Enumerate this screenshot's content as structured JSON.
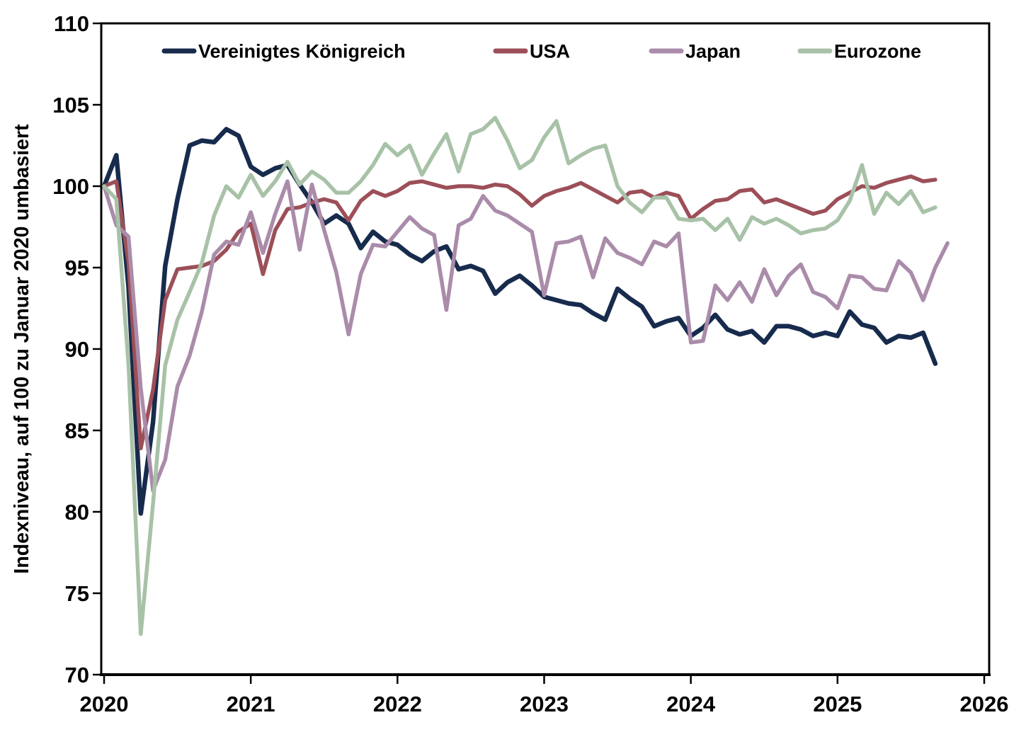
{
  "y_axis": {
    "title": "Indexniveau, auf 100 zu Januar 2020 umbasiert",
    "ticks": [
      110,
      105,
      100,
      95,
      90,
      85,
      80,
      75,
      70
    ]
  },
  "x_axis": {
    "ticks": [
      "2020",
      "2021",
      "2022",
      "2023",
      "2024",
      "2025",
      "2026"
    ]
  },
  "chart_data": {
    "type": "line",
    "title": "",
    "xlabel": "",
    "ylabel": "Indexniveau, auf 100 zu Januar 2020 umbasiert",
    "ylim": [
      70,
      110
    ],
    "xlim": [
      2020,
      2026
    ],
    "x_unit": "month",
    "x_start": "2020-01",
    "grid": false,
    "legend_position": "top-inside",
    "axis_color": "#000000",
    "background_color": "#ffffff",
    "series": [
      {
        "name": "Vereinigtes Königreich",
        "color": "#172b4d",
        "line_width": 6.5,
        "values": [
          100,
          101.9,
          93.8,
          79.9,
          85.5,
          95.1,
          99.2,
          102.5,
          102.8,
          102.7,
          103.5,
          103.1,
          101.2,
          100.7,
          101.1,
          101.3,
          100.1,
          99.0,
          97.7,
          98.2,
          97.7,
          96.2,
          97.2,
          96.6,
          96.4,
          95.8,
          95.4,
          96.0,
          96.3,
          94.9,
          95.1,
          94.8,
          93.4,
          94.1,
          94.5,
          93.9,
          93.2,
          93.0,
          92.8,
          92.7,
          92.2,
          91.8,
          93.7,
          93.1,
          92.6,
          91.4,
          91.7,
          91.9,
          90.8,
          91.3,
          92.1,
          91.2,
          90.9,
          91.1,
          90.4,
          91.4,
          91.4,
          91.2,
          90.8,
          91.0,
          90.8,
          92.3,
          91.5,
          91.3,
          90.4,
          90.8,
          90.7,
          91.0,
          89.1
        ]
      },
      {
        "name": "USA",
        "color": "#9c4f58",
        "line_width": 5.5,
        "values": [
          100,
          100.3,
          95.3,
          83.9,
          87.5,
          93.0,
          94.9,
          95.0,
          95.1,
          95.4,
          96.1,
          97.2,
          97.7,
          94.6,
          97.3,
          98.6,
          98.7,
          99.0,
          99.2,
          99.0,
          97.9,
          99.1,
          99.7,
          99.4,
          99.7,
          100.2,
          100.3,
          100.1,
          99.9,
          100.0,
          100.0,
          99.9,
          100.1,
          100.0,
          99.5,
          98.8,
          99.4,
          99.7,
          99.9,
          100.2,
          99.8,
          99.4,
          99.0,
          99.6,
          99.7,
          99.3,
          99.6,
          99.4,
          98.0,
          98.6,
          99.1,
          99.2,
          99.7,
          99.8,
          99.0,
          99.2,
          98.9,
          98.6,
          98.3,
          98.5,
          99.2,
          99.6,
          100.0,
          99.9,
          100.2,
          100.4,
          100.6,
          100.3,
          100.4
        ]
      },
      {
        "name": "Japan",
        "color": "#aa8caa",
        "line_width": 5.5,
        "values": [
          100,
          97.6,
          96.9,
          87.6,
          81.3,
          83.2,
          87.7,
          89.6,
          92.3,
          95.8,
          96.6,
          96.4,
          98.4,
          95.9,
          98.3,
          100.3,
          96.1,
          100.1,
          97.3,
          94.7,
          90.9,
          94.6,
          96.4,
          96.3,
          97.2,
          98.1,
          97.4,
          97.0,
          92.4,
          97.6,
          98.0,
          99.4,
          98.5,
          98.2,
          97.7,
          97.2,
          93.3,
          96.5,
          96.6,
          96.9,
          94.4,
          96.8,
          95.9,
          95.6,
          95.2,
          96.6,
          96.3,
          97.1,
          90.4,
          90.5,
          93.9,
          93.0,
          94.1,
          92.9,
          94.9,
          93.3,
          94.5,
          95.2,
          93.5,
          93.2,
          92.5,
          94.5,
          94.4,
          93.7,
          93.6,
          95.4,
          94.7,
          93.0,
          95.0,
          96.5
        ]
      },
      {
        "name": "Eurozone",
        "color": "#a8c2a8",
        "line_width": 5.5,
        "values": [
          100,
          99.2,
          89.0,
          72.5,
          80.5,
          89.0,
          91.8,
          93.5,
          95.3,
          98.2,
          100.0,
          99.3,
          100.7,
          99.4,
          100.3,
          101.5,
          100.1,
          100.9,
          100.4,
          99.6,
          99.6,
          100.3,
          101.3,
          102.6,
          101.9,
          102.5,
          100.7,
          102.0,
          103.2,
          100.9,
          103.2,
          103.5,
          104.2,
          102.8,
          101.1,
          101.6,
          103.0,
          104.0,
          101.4,
          101.9,
          102.3,
          102.5,
          100.0,
          99.0,
          98.4,
          99.3,
          99.3,
          98.0,
          97.9,
          98.0,
          97.3,
          98.0,
          96.7,
          98.1,
          97.7,
          98.0,
          97.6,
          97.1,
          97.3,
          97.4,
          97.9,
          99.1,
          101.3,
          98.3,
          99.6,
          98.9,
          99.7,
          98.4,
          98.7
        ]
      }
    ]
  }
}
